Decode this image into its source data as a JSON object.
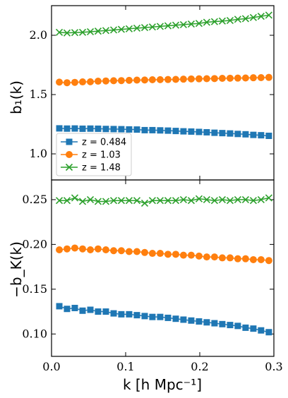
{
  "chart_data": [
    {
      "type": "line",
      "panel": "top",
      "ylabel": "b₁(k)",
      "ylim": [
        0.78,
        2.25
      ],
      "xlim": [
        0.0,
        0.3
      ],
      "yticks": [
        1.0,
        1.5,
        2.0
      ],
      "ytick_labels": [
        "1.0",
        "1.5",
        "2.0"
      ],
      "legend": {
        "placement": "lower-left",
        "entries": [
          "z = 0.484",
          "z = 1.03",
          "z = 1.48"
        ]
      },
      "x": [
        0.0105,
        0.0209,
        0.0314,
        0.0419,
        0.0524,
        0.0628,
        0.0733,
        0.0838,
        0.0942,
        0.1047,
        0.1152,
        0.1257,
        0.1361,
        0.1466,
        0.1571,
        0.1676,
        0.178,
        0.1885,
        0.199,
        0.2094,
        0.2199,
        0.2304,
        0.2409,
        0.2513,
        0.2618,
        0.2723,
        0.2827,
        0.2932
      ],
      "series": [
        {
          "name": "z = 0.484",
          "color": "#1f77b4",
          "marker": "square",
          "values": [
            1.215,
            1.213,
            1.214,
            1.212,
            1.213,
            1.212,
            1.21,
            1.209,
            1.208,
            1.206,
            1.205,
            1.2,
            1.2,
            1.198,
            1.196,
            1.193,
            1.19,
            1.188,
            1.185,
            1.182,
            1.178,
            1.175,
            1.172,
            1.168,
            1.165,
            1.16,
            1.157,
            1.152
          ]
        },
        {
          "name": "z = 1.03",
          "color": "#ff7f0e",
          "marker": "circle",
          "values": [
            1.605,
            1.6,
            1.603,
            1.607,
            1.608,
            1.613,
            1.615,
            1.617,
            1.618,
            1.62,
            1.622,
            1.623,
            1.625,
            1.626,
            1.627,
            1.628,
            1.63,
            1.632,
            1.633,
            1.634,
            1.635,
            1.637,
            1.638,
            1.639,
            1.64,
            1.642,
            1.643,
            1.645
          ]
        },
        {
          "name": "z = 1.48",
          "color": "#2ca02c",
          "marker": "x",
          "values": [
            2.025,
            2.02,
            2.023,
            2.025,
            2.03,
            2.035,
            2.04,
            2.045,
            2.05,
            2.055,
            2.06,
            2.065,
            2.07,
            2.075,
            2.08,
            2.085,
            2.09,
            2.095,
            2.1,
            2.11,
            2.115,
            2.12,
            2.125,
            2.135,
            2.14,
            2.15,
            2.16,
            2.17
          ]
        }
      ]
    },
    {
      "type": "line",
      "panel": "bottom",
      "ylabel": "−b_K(k)",
      "xlabel": "k [h Mpc⁻¹]",
      "ylim": [
        0.075,
        0.272
      ],
      "xlim": [
        0.0,
        0.3
      ],
      "yticks": [
        0.1,
        0.15,
        0.2,
        0.25
      ],
      "ytick_labels": [
        "0.10",
        "0.15",
        "0.20",
        "0.25"
      ],
      "xticks": [
        0.0,
        0.1,
        0.2,
        0.3
      ],
      "xtick_labels": [
        "0.0",
        "0.1",
        "0.2",
        "0.3"
      ],
      "x": [
        0.0105,
        0.0209,
        0.0314,
        0.0419,
        0.0524,
        0.0628,
        0.0733,
        0.0838,
        0.0942,
        0.1047,
        0.1152,
        0.1257,
        0.1361,
        0.1466,
        0.1571,
        0.1676,
        0.178,
        0.1885,
        0.199,
        0.2094,
        0.2199,
        0.2304,
        0.2409,
        0.2513,
        0.2618,
        0.2723,
        0.2827,
        0.2932
      ],
      "series": [
        {
          "name": "z = 0.484",
          "color": "#1f77b4",
          "marker": "square",
          "values": [
            0.131,
            0.128,
            0.129,
            0.126,
            0.127,
            0.125,
            0.125,
            0.123,
            0.122,
            0.122,
            0.121,
            0.12,
            0.119,
            0.119,
            0.118,
            0.117,
            0.116,
            0.115,
            0.114,
            0.113,
            0.112,
            0.111,
            0.11,
            0.109,
            0.107,
            0.106,
            0.104,
            0.102
          ]
        },
        {
          "name": "z = 1.03",
          "color": "#ff7f0e",
          "marker": "circle",
          "values": [
            0.194,
            0.195,
            0.196,
            0.195,
            0.194,
            0.195,
            0.194,
            0.193,
            0.193,
            0.192,
            0.192,
            0.191,
            0.19,
            0.19,
            0.189,
            0.189,
            0.188,
            0.188,
            0.187,
            0.186,
            0.186,
            0.185,
            0.185,
            0.184,
            0.184,
            0.183,
            0.183,
            0.182
          ]
        },
        {
          "name": "z = 1.48",
          "color": "#2ca02c",
          "marker": "x",
          "values": [
            0.249,
            0.249,
            0.252,
            0.248,
            0.25,
            0.248,
            0.248,
            0.249,
            0.249,
            0.249,
            0.249,
            0.246,
            0.249,
            0.249,
            0.249,
            0.249,
            0.25,
            0.249,
            0.251,
            0.25,
            0.249,
            0.25,
            0.249,
            0.25,
            0.25,
            0.249,
            0.25,
            0.252
          ]
        }
      ]
    }
  ]
}
